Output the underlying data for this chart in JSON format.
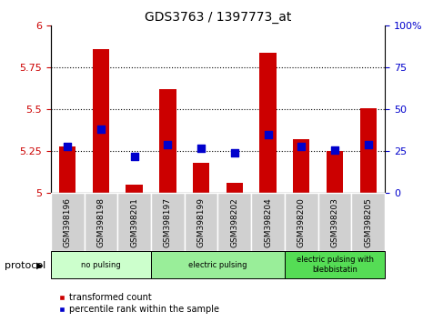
{
  "title": "GDS3763 / 1397773_at",
  "samples": [
    "GSM398196",
    "GSM398198",
    "GSM398201",
    "GSM398197",
    "GSM398199",
    "GSM398202",
    "GSM398204",
    "GSM398200",
    "GSM398203",
    "GSM398205"
  ],
  "transformed_count": [
    5.28,
    5.86,
    5.05,
    5.62,
    5.18,
    5.06,
    5.84,
    5.32,
    5.25,
    5.51
  ],
  "percentile_rank": [
    28,
    38,
    22,
    29,
    27,
    24,
    35,
    28,
    26,
    29
  ],
  "ylim_left": [
    5.0,
    6.0
  ],
  "ylim_right": [
    0,
    100
  ],
  "yticks_left": [
    5.0,
    5.25,
    5.5,
    5.75,
    6.0
  ],
  "ytick_labels_left": [
    "5",
    "5.25",
    "5.5",
    "5.75",
    "6"
  ],
  "yticks_right": [
    0,
    25,
    50,
    75,
    100
  ],
  "ytick_labels_right": [
    "0",
    "25",
    "50",
    "75",
    "100%"
  ],
  "grid_ticks": [
    5.25,
    5.5,
    5.75
  ],
  "bar_color": "#cc0000",
  "dot_color": "#0000cc",
  "groups": [
    {
      "label": "no pulsing",
      "start": 0,
      "end": 3,
      "color": "#ccffcc"
    },
    {
      "label": "electric pulsing",
      "start": 3,
      "end": 7,
      "color": "#99ee99"
    },
    {
      "label": "electric pulsing with\nblebbistatin",
      "start": 7,
      "end": 10,
      "color": "#55dd55"
    }
  ],
  "protocol_label": "protocol",
  "legend_items": [
    {
      "label": "transformed count",
      "color": "#cc0000"
    },
    {
      "label": "percentile rank within the sample",
      "color": "#0000cc"
    }
  ],
  "tick_label_color_left": "#cc0000",
  "tick_label_color_right": "#0000cc",
  "background_color": "#ffffff",
  "bar_width": 0.5,
  "dot_size": 35
}
